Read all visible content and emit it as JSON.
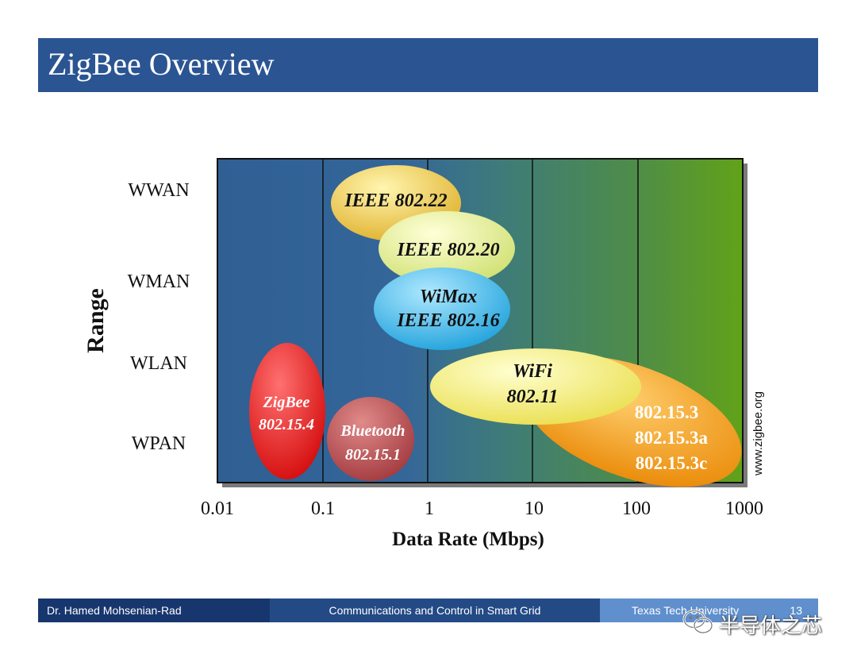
{
  "slide": {
    "title": "ZigBee Overview"
  },
  "diagram": {
    "y_axis_title": "Range",
    "x_axis_title": "Data Rate (Mbps)",
    "range_labels": [
      "WWAN",
      "WMAN",
      "WLAN",
      "WPAN"
    ],
    "x_ticks": [
      "0.01",
      "0.1",
      "1",
      "10",
      "100",
      "1000"
    ],
    "source_label": "www.zigbee.org",
    "standards": [
      {
        "id": "ieee-802-22",
        "lines": [
          "IEEE 802.22"
        ],
        "color": "#e9c23c"
      },
      {
        "id": "ieee-802-20",
        "lines": [
          "IEEE 802.20"
        ],
        "color": "#e6ea8c"
      },
      {
        "id": "wimax",
        "lines": [
          "WiMax",
          "IEEE 802.16"
        ],
        "color": "#3fb3e4"
      },
      {
        "id": "wifi",
        "lines": [
          "WiFi",
          "802.11"
        ],
        "color": "#f2ee78"
      },
      {
        "id": "ieee-802-15-3",
        "lines": [
          "802.15.3",
          "802.15.3a",
          "802.15.3c"
        ],
        "color": "#f29a18"
      },
      {
        "id": "zigbee",
        "lines": [
          "ZigBee",
          "802.15.4"
        ],
        "color": "#e01818"
      },
      {
        "id": "bluetooth",
        "lines": [
          "Bluetooth",
          "802.15.1"
        ],
        "color": "#b64a4e"
      }
    ]
  },
  "footer": {
    "author": "Dr. Hamed Mohsenian-Rad",
    "course": "Communications and Control in Smart Grid",
    "university": "Texas Tech University",
    "page": "13"
  },
  "watermark": {
    "text": "半导体之芯",
    "icon": "wechat-icon"
  }
}
